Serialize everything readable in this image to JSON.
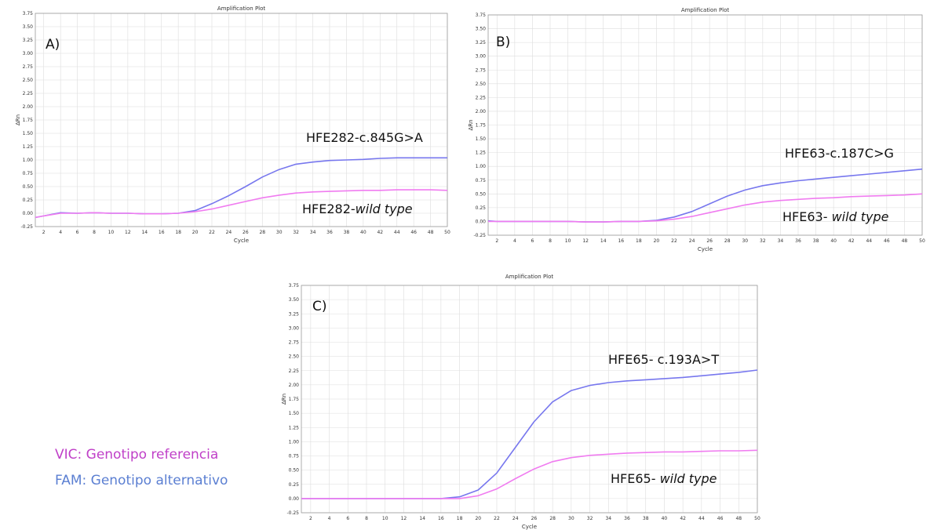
{
  "colors": {
    "fam": "#7777ee",
    "vic": "#f07cf0",
    "grid": "#dddddd",
    "frame": "#999999",
    "legend_vic": "#c040c8",
    "legend_fam": "#5b7fd2"
  },
  "legend": {
    "vic": "VIC: Genotipo referencia",
    "fam": "FAM: Genotipo alternativo"
  },
  "chart_data": [
    {
      "type": "line",
      "panel": "A)",
      "title": "Amplification Plot",
      "xlabel": "Cycle",
      "ylabel": "ΔRn",
      "xlim": [
        1,
        50
      ],
      "ylim": [
        -0.25,
        3.75
      ],
      "grid": true,
      "x_ticks": [
        "2",
        "4",
        "6",
        "8",
        "10",
        "12",
        "14",
        "16",
        "18",
        "20",
        "22",
        "24",
        "26",
        "28",
        "30",
        "32",
        "34",
        "36",
        "38",
        "40",
        "42",
        "44",
        "46",
        "48",
        "50"
      ],
      "y_ticks": [
        "3.75",
        "3.50",
        "3.25",
        "3.00",
        "2.75",
        "2.50",
        "2.25",
        "2.00",
        "1.75",
        "1.50",
        "1.25",
        "1.00",
        "0.75",
        "0.50",
        "0.25",
        "0.00",
        "-0.25"
      ],
      "annotations": {
        "fam": {
          "text": "HFE282-c.845G>A",
          "italic": ""
        },
        "vic": {
          "text": "HFE282-",
          "italic": "wild type"
        }
      },
      "series": [
        {
          "key": "fam",
          "x": [
            1,
            2,
            4,
            6,
            8,
            10,
            12,
            14,
            16,
            18,
            20,
            22,
            24,
            26,
            28,
            30,
            32,
            34,
            36,
            38,
            40,
            42,
            44,
            46,
            48,
            50
          ],
          "values": [
            -0.08,
            -0.05,
            0.01,
            0.0,
            0.01,
            0.0,
            0.0,
            -0.01,
            -0.01,
            0.0,
            0.05,
            0.18,
            0.33,
            0.5,
            0.68,
            0.82,
            0.92,
            0.96,
            0.99,
            1.0,
            1.01,
            1.03,
            1.04,
            1.04,
            1.04,
            1.04
          ]
        },
        {
          "key": "vic",
          "x": [
            1,
            2,
            4,
            6,
            8,
            10,
            12,
            14,
            16,
            18,
            20,
            22,
            24,
            26,
            28,
            30,
            32,
            34,
            36,
            38,
            40,
            42,
            44,
            46,
            48,
            50
          ],
          "values": [
            -0.08,
            -0.05,
            0.0,
            0.0,
            0.01,
            0.0,
            0.0,
            -0.01,
            -0.01,
            0.0,
            0.03,
            0.08,
            0.15,
            0.22,
            0.29,
            0.34,
            0.38,
            0.4,
            0.41,
            0.42,
            0.43,
            0.43,
            0.44,
            0.44,
            0.44,
            0.43
          ]
        }
      ]
    },
    {
      "type": "line",
      "panel": "B)",
      "title": "Amplification Plot",
      "xlabel": "Cycle",
      "ylabel": "ΔRn",
      "xlim": [
        1,
        50
      ],
      "ylim": [
        -0.25,
        3.75
      ],
      "grid": true,
      "x_ticks": [
        "2",
        "4",
        "6",
        "8",
        "10",
        "12",
        "14",
        "16",
        "18",
        "20",
        "22",
        "24",
        "26",
        "28",
        "30",
        "32",
        "34",
        "36",
        "38",
        "40",
        "42",
        "44",
        "46",
        "48",
        "50"
      ],
      "y_ticks": [
        "3.75",
        "3.50",
        "3.25",
        "3.00",
        "2.75",
        "2.50",
        "2.25",
        "2.00",
        "1.75",
        "1.50",
        "1.25",
        "1.00",
        "0.75",
        "0.50",
        "0.25",
        "0.00",
        "-0.25"
      ],
      "annotations": {
        "fam": {
          "text": "HFE63-c.187C>G",
          "italic": ""
        },
        "vic": {
          "text": "HFE63- ",
          "italic": "wild type"
        }
      },
      "series": [
        {
          "key": "fam",
          "x": [
            1,
            2,
            4,
            6,
            8,
            10,
            12,
            14,
            16,
            18,
            20,
            22,
            24,
            26,
            28,
            30,
            32,
            34,
            36,
            38,
            40,
            42,
            44,
            46,
            48,
            50
          ],
          "values": [
            0.01,
            0.0,
            0.0,
            0.0,
            0.0,
            0.0,
            -0.01,
            -0.01,
            0.0,
            0.0,
            0.02,
            0.08,
            0.18,
            0.32,
            0.46,
            0.57,
            0.65,
            0.7,
            0.74,
            0.77,
            0.8,
            0.83,
            0.86,
            0.89,
            0.92,
            0.95
          ]
        },
        {
          "key": "vic",
          "x": [
            1,
            2,
            4,
            6,
            8,
            10,
            12,
            14,
            16,
            18,
            20,
            22,
            24,
            26,
            28,
            30,
            32,
            34,
            36,
            38,
            40,
            42,
            44,
            46,
            48,
            50
          ],
          "values": [
            0.0,
            0.0,
            0.0,
            0.0,
            0.0,
            0.0,
            -0.01,
            -0.01,
            0.0,
            0.0,
            0.01,
            0.04,
            0.09,
            0.16,
            0.23,
            0.3,
            0.35,
            0.38,
            0.4,
            0.42,
            0.43,
            0.45,
            0.46,
            0.47,
            0.48,
            0.5
          ]
        }
      ]
    },
    {
      "type": "line",
      "panel": "C)",
      "title": "Amplification Plot",
      "xlabel": "Cycle",
      "ylabel": "ΔRn",
      "xlim": [
        1,
        50
      ],
      "ylim": [
        -0.25,
        3.75
      ],
      "grid": true,
      "x_ticks": [
        "2",
        "4",
        "6",
        "8",
        "10",
        "12",
        "14",
        "16",
        "18",
        "20",
        "22",
        "24",
        "26",
        "28",
        "30",
        "32",
        "34",
        "36",
        "38",
        "40",
        "42",
        "44",
        "46",
        "48",
        "50"
      ],
      "y_ticks": [
        "3.75",
        "3.50",
        "3.25",
        "3.00",
        "2.75",
        "2.50",
        "2.25",
        "2.00",
        "1.75",
        "1.50",
        "1.25",
        "1.00",
        "0.75",
        "0.50",
        "0.25",
        "0.00",
        "-0.25"
      ],
      "annotations": {
        "fam": {
          "text": "HFE65- c.193A>T",
          "italic": ""
        },
        "vic": {
          "text": "HFE65- ",
          "italic": "wild type"
        }
      },
      "series": [
        {
          "key": "fam",
          "x": [
            1,
            2,
            4,
            6,
            8,
            10,
            12,
            14,
            16,
            18,
            20,
            22,
            24,
            26,
            28,
            30,
            32,
            34,
            36,
            38,
            40,
            42,
            44,
            46,
            48,
            50
          ],
          "values": [
            0.0,
            0.0,
            0.0,
            0.0,
            0.0,
            0.0,
            0.0,
            0.0,
            0.0,
            0.03,
            0.15,
            0.45,
            0.9,
            1.35,
            1.7,
            1.9,
            1.99,
            2.04,
            2.07,
            2.09,
            2.11,
            2.13,
            2.16,
            2.19,
            2.22,
            2.26
          ]
        },
        {
          "key": "vic",
          "x": [
            1,
            2,
            4,
            6,
            8,
            10,
            12,
            14,
            16,
            18,
            20,
            22,
            24,
            26,
            28,
            30,
            32,
            34,
            36,
            38,
            40,
            42,
            44,
            46,
            48,
            50
          ],
          "values": [
            0.0,
            0.0,
            0.0,
            0.0,
            0.0,
            0.0,
            0.0,
            0.0,
            0.0,
            0.0,
            0.05,
            0.17,
            0.35,
            0.52,
            0.65,
            0.72,
            0.76,
            0.78,
            0.8,
            0.81,
            0.82,
            0.82,
            0.83,
            0.84,
            0.84,
            0.85
          ]
        }
      ]
    }
  ]
}
